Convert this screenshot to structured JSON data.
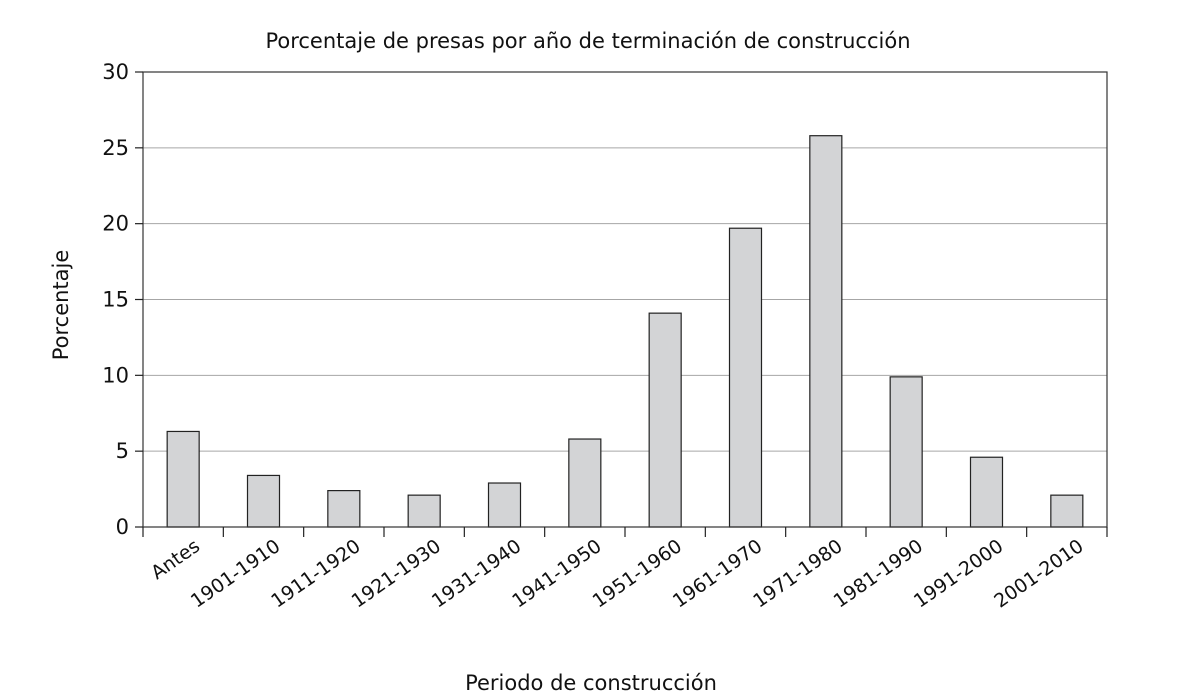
{
  "chart_data": {
    "type": "bar",
    "title": "Porcentaje de presas por año de terminación de construcción",
    "xlabel": "Periodo de construcción",
    "ylabel": "Porcentaje",
    "categories": [
      "Antes",
      "1901-1910",
      "1911-1920",
      "1921-1930",
      "1931-1940",
      "1941-1950",
      "1951-1960",
      "1961-1970",
      "1971-1980",
      "1981-1990",
      "1991-2000",
      "2001-2010"
    ],
    "values": [
      6.3,
      3.4,
      2.4,
      2.1,
      2.9,
      5.8,
      14.1,
      19.7,
      25.8,
      9.9,
      4.6,
      2.1
    ],
    "ylim": [
      0,
      30
    ],
    "yticks": [
      0,
      5,
      10,
      15,
      20,
      25,
      30
    ],
    "grid": true,
    "colors": {
      "bar_fill": "#d3d4d6",
      "bar_stroke": "#222222",
      "grid": "#a6a6a6"
    }
  }
}
